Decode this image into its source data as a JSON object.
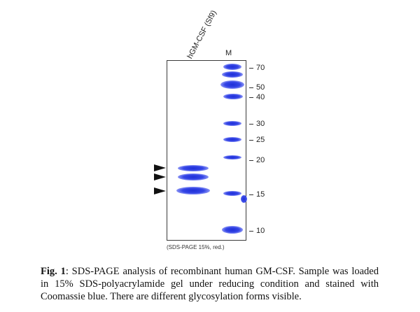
{
  "figure": {
    "lane_label": "hGM-CSF (Sf9)",
    "marker_label": "M",
    "gel_note": "(SDS-PAGE 15%, red.)",
    "mw_markers": [
      {
        "kda": 70,
        "label": "70"
      },
      {
        "kda": 50,
        "label": "50"
      },
      {
        "kda": 40,
        "label": "40"
      },
      {
        "kda": 30,
        "label": "30"
      },
      {
        "kda": 25,
        "label": "25"
      },
      {
        "kda": 20,
        "label": "20"
      },
      {
        "kda": 15,
        "label": "15"
      },
      {
        "kda": 10,
        "label": "10"
      }
    ],
    "sample_band_count": 3,
    "arrow_count": 3
  },
  "caption": {
    "label": "Fig. 1",
    "text": ": SDS-PAGE analysis of recombinant human GM-CSF. Sample was loaded in 15% SDS-polyacrylamide gel under reducing condition and stained with Coomassie blue. There are different glycosylation forms visible."
  },
  "colors": {
    "band": "#2233dd",
    "frame": "#3a3a3a",
    "text": "#111111"
  }
}
